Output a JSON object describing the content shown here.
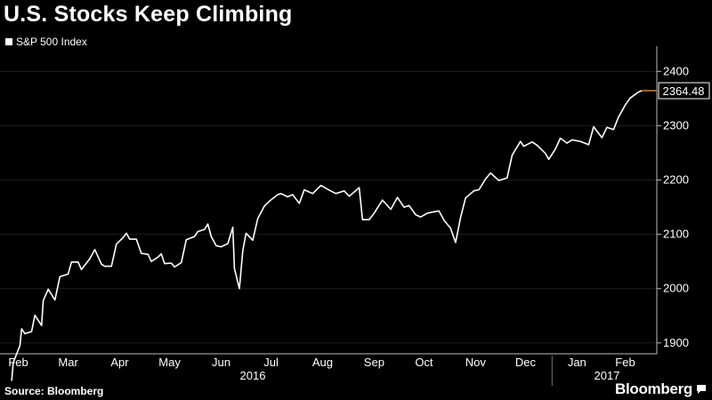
{
  "title": "U.S. Stocks Keep Climbing",
  "legend_label": "S&P 500 Index",
  "source": "Source: Bloomberg",
  "brand": "Bloomberg",
  "brand_icon": "speech-bubble-icon",
  "colors": {
    "background": "#000000",
    "line": "#ffffff",
    "last_marker": "#e07a2a",
    "grid": "#1e1e1e"
  },
  "chart_data": {
    "type": "line",
    "title": "U.S. Stocks Keep Climbing",
    "series": [
      {
        "name": "S&P 500 Index",
        "points": [
          [
            "2016-02-11",
            1830
          ],
          [
            "2016-02-12",
            1864
          ],
          [
            "2016-02-16",
            1895
          ],
          [
            "2016-02-17",
            1926
          ],
          [
            "2016-02-19",
            1917
          ],
          [
            "2016-02-23",
            1921
          ],
          [
            "2016-02-25",
            1951
          ],
          [
            "2016-02-29",
            1932
          ],
          [
            "2016-03-01",
            1978
          ],
          [
            "2016-03-04",
            1999
          ],
          [
            "2016-03-08",
            1979
          ],
          [
            "2016-03-11",
            2022
          ],
          [
            "2016-03-16",
            2027
          ],
          [
            "2016-03-18",
            2049
          ],
          [
            "2016-03-22",
            2049
          ],
          [
            "2016-03-24",
            2035
          ],
          [
            "2016-03-29",
            2055
          ],
          [
            "2016-04-01",
            2072
          ],
          [
            "2016-04-05",
            2045
          ],
          [
            "2016-04-07",
            2041
          ],
          [
            "2016-04-11",
            2041
          ],
          [
            "2016-04-14",
            2082
          ],
          [
            "2016-04-18",
            2094
          ],
          [
            "2016-04-20",
            2102
          ],
          [
            "2016-04-22",
            2091
          ],
          [
            "2016-04-26",
            2091
          ],
          [
            "2016-04-29",
            2065
          ],
          [
            "2016-05-03",
            2063
          ],
          [
            "2016-05-05",
            2050
          ],
          [
            "2016-05-09",
            2058
          ],
          [
            "2016-05-11",
            2064
          ],
          [
            "2016-05-13",
            2046
          ],
          [
            "2016-05-17",
            2047
          ],
          [
            "2016-05-19",
            2040
          ],
          [
            "2016-05-23",
            2048
          ],
          [
            "2016-05-26",
            2090
          ],
          [
            "2016-05-31",
            2096
          ],
          [
            "2016-06-02",
            2105
          ],
          [
            "2016-06-06",
            2109
          ],
          [
            "2016-06-08",
            2119
          ],
          [
            "2016-06-10",
            2096
          ],
          [
            "2016-06-13",
            2079
          ],
          [
            "2016-06-16",
            2077
          ],
          [
            "2016-06-20",
            2083
          ],
          [
            "2016-06-23",
            2113
          ],
          [
            "2016-06-24",
            2037
          ],
          [
            "2016-06-27",
            2000
          ],
          [
            "2016-06-29",
            2070
          ],
          [
            "2016-07-01",
            2102
          ],
          [
            "2016-07-05",
            2089
          ],
          [
            "2016-07-08",
            2129
          ],
          [
            "2016-07-12",
            2152
          ],
          [
            "2016-07-15",
            2161
          ],
          [
            "2016-07-20",
            2173
          ],
          [
            "2016-07-22",
            2175
          ],
          [
            "2016-07-26",
            2169
          ],
          [
            "2016-07-29",
            2173
          ],
          [
            "2016-08-02",
            2157
          ],
          [
            "2016-08-05",
            2182
          ],
          [
            "2016-08-10",
            2175
          ],
          [
            "2016-08-15",
            2190
          ],
          [
            "2016-08-19",
            2183
          ],
          [
            "2016-08-24",
            2175
          ],
          [
            "2016-08-29",
            2180
          ],
          [
            "2016-09-01",
            2170
          ],
          [
            "2016-09-07",
            2186
          ],
          [
            "2016-09-09",
            2127
          ],
          [
            "2016-09-13",
            2127
          ],
          [
            "2016-09-16",
            2139
          ],
          [
            "2016-09-21",
            2163
          ],
          [
            "2016-09-26",
            2146
          ],
          [
            "2016-09-30",
            2168
          ],
          [
            "2016-10-04",
            2150
          ],
          [
            "2016-10-07",
            2153
          ],
          [
            "2016-10-11",
            2136
          ],
          [
            "2016-10-14",
            2132
          ],
          [
            "2016-10-18",
            2139
          ],
          [
            "2016-10-21",
            2141
          ],
          [
            "2016-10-25",
            2143
          ],
          [
            "2016-10-28",
            2126
          ],
          [
            "2016-11-01",
            2111
          ],
          [
            "2016-11-04",
            2085
          ],
          [
            "2016-11-07",
            2131
          ],
          [
            "2016-11-10",
            2167
          ],
          [
            "2016-11-15",
            2180
          ],
          [
            "2016-11-18",
            2182
          ],
          [
            "2016-11-22",
            2202
          ],
          [
            "2016-11-25",
            2213
          ],
          [
            "2016-11-30",
            2199
          ],
          [
            "2016-12-05",
            2204
          ],
          [
            "2016-12-08",
            2246
          ],
          [
            "2016-12-13",
            2271
          ],
          [
            "2016-12-15",
            2262
          ],
          [
            "2016-12-20",
            2270
          ],
          [
            "2016-12-23",
            2264
          ],
          [
            "2016-12-28",
            2249
          ],
          [
            "2016-12-30",
            2238
          ],
          [
            "2017-01-03",
            2257
          ],
          [
            "2017-01-06",
            2277
          ],
          [
            "2017-01-10",
            2268
          ],
          [
            "2017-01-13",
            2274
          ],
          [
            "2017-01-18",
            2271
          ],
          [
            "2017-01-23",
            2265
          ],
          [
            "2017-01-26",
            2298
          ],
          [
            "2017-01-31",
            2278
          ],
          [
            "2017-02-03",
            2297
          ],
          [
            "2017-02-07",
            2293
          ],
          [
            "2017-02-10",
            2316
          ],
          [
            "2017-02-14",
            2338
          ],
          [
            "2017-02-17",
            2351
          ],
          [
            "2017-02-22",
            2362
          ],
          [
            "2017-02-24",
            2364.48
          ]
        ]
      }
    ],
    "last_value_label": "2364.48",
    "y_ticks": [
      1900,
      2000,
      2100,
      2200,
      2300,
      2400
    ],
    "ylim": [
      1880,
      2430
    ],
    "x_range": [
      "2016-02-04",
      "2017-03-05"
    ],
    "month_ticks": [
      {
        "label": "Feb",
        "date": "2016-02-15"
      },
      {
        "label": "Mar",
        "date": "2016-03-16"
      },
      {
        "label": "Apr",
        "date": "2016-04-16"
      },
      {
        "label": "May",
        "date": "2016-05-16"
      },
      {
        "label": "Jun",
        "date": "2016-06-16"
      },
      {
        "label": "Jul",
        "date": "2016-07-16"
      },
      {
        "label": "Aug",
        "date": "2016-08-16"
      },
      {
        "label": "Sep",
        "date": "2016-09-16"
      },
      {
        "label": "Oct",
        "date": "2016-10-16"
      },
      {
        "label": "Nov",
        "date": "2016-11-16"
      },
      {
        "label": "Dec",
        "date": "2016-12-16"
      },
      {
        "label": "Jan",
        "date": "2017-01-16"
      },
      {
        "label": "Feb",
        "date": "2017-02-14"
      }
    ],
    "year_labels": [
      {
        "label": "2016",
        "date": "2016-07-05"
      },
      {
        "label": "2017",
        "date": "2017-02-03"
      }
    ],
    "year_divider": "2017-01-01",
    "grid": true,
    "y_axis_side": "right"
  }
}
